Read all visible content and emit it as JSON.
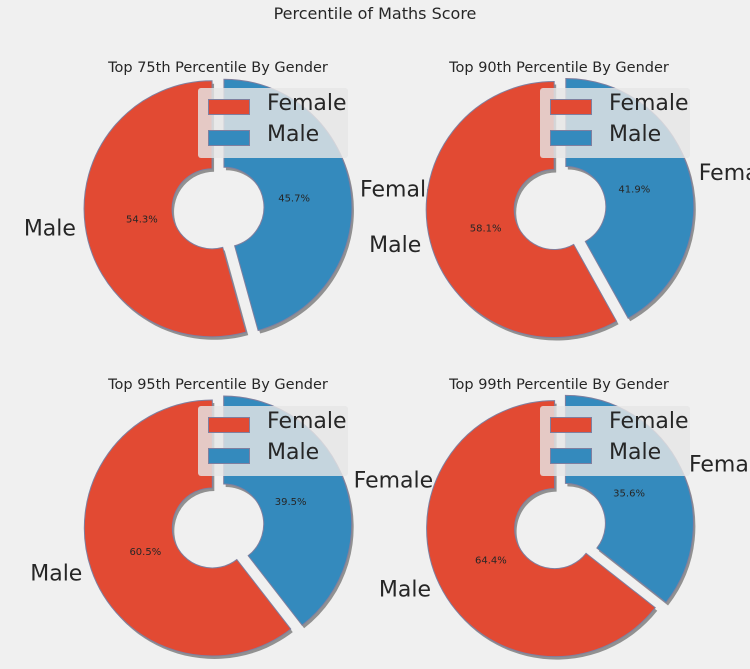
{
  "title": "Percentile of Maths Score",
  "colors": {
    "female": "#E24A33",
    "male": "#348ABD",
    "background": "#f0f0f0",
    "edge": "#7f7f9f",
    "shadow": "#808080"
  },
  "chart_data": [
    {
      "type": "pie",
      "donut": true,
      "title": "Top 75th Percentile By Gender",
      "slice_colors": [
        "#E24A33",
        "#348ABD"
      ],
      "slices": [
        {
          "outer_label": "Male",
          "value": 54.3,
          "pct_label": "54.3%"
        },
        {
          "outer_label": "Female",
          "value": 45.7,
          "pct_label": "45.7%"
        }
      ],
      "legend": {
        "entries": [
          "Female",
          "Male"
        ],
        "placement": "upper right"
      }
    },
    {
      "type": "pie",
      "donut": true,
      "title": "Top 90th Percentile By Gender",
      "slice_colors": [
        "#E24A33",
        "#348ABD"
      ],
      "slices": [
        {
          "outer_label": "Male",
          "value": 58.1,
          "pct_label": "58.1%"
        },
        {
          "outer_label": "Female",
          "value": 41.9,
          "pct_label": "41.9%"
        }
      ],
      "legend": {
        "entries": [
          "Female",
          "Male"
        ],
        "placement": "upper right"
      }
    },
    {
      "type": "pie",
      "donut": true,
      "title": "Top 95th Percentile By Gender",
      "slice_colors": [
        "#E24A33",
        "#348ABD"
      ],
      "slices": [
        {
          "outer_label": "Male",
          "value": 60.5,
          "pct_label": "60.5%"
        },
        {
          "outer_label": "Female",
          "value": 39.5,
          "pct_label": "39.5%"
        }
      ],
      "legend": {
        "entries": [
          "Female",
          "Male"
        ],
        "placement": "upper right"
      }
    },
    {
      "type": "pie",
      "donut": true,
      "title": "Top 99th Percentile By Gender",
      "slice_colors": [
        "#E24A33",
        "#348ABD"
      ],
      "slices": [
        {
          "outer_label": "Male",
          "value": 64.4,
          "pct_label": "64.4%"
        },
        {
          "outer_label": "Female",
          "value": 35.6,
          "pct_label": "35.6%"
        }
      ],
      "legend": {
        "entries": [
          "Female",
          "Male"
        ],
        "placement": "upper right"
      }
    }
  ]
}
